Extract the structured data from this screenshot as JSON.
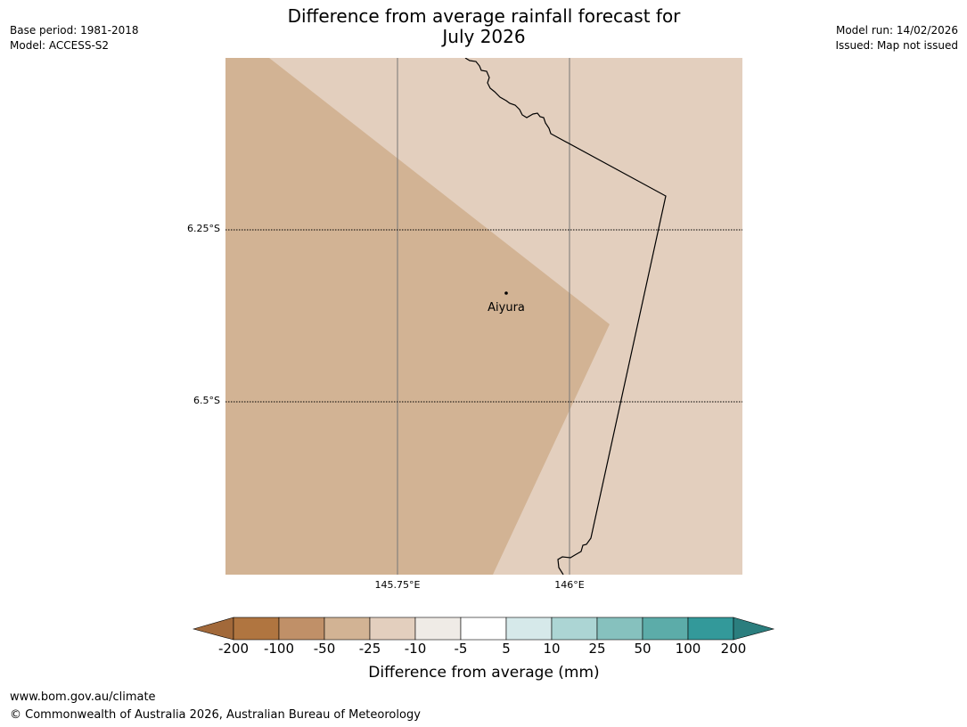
{
  "header": {
    "title_line1": "Difference from average rainfall forecast for",
    "title_line2": "July 2026",
    "base_period": "Base period: 1981-2018",
    "model": "Model: ACCESS-S2",
    "model_run": "Model run: 14/02/2026",
    "issued": "Issued: Map not issued"
  },
  "map": {
    "colors": {
      "band_minus50_to_minus25": "#d2b394",
      "band_minus25_to_minus10": "#e3cfbe"
    },
    "lat_labels": [
      "6.25°S",
      "6.5°S"
    ],
    "lon_labels": [
      "145.75°E",
      "146°E"
    ],
    "place": {
      "name": "Aiyura"
    }
  },
  "legend": {
    "title": "Difference from average (mm)",
    "ticks": [
      "-200",
      "-100",
      "-50",
      "-25",
      "-10",
      "-5",
      "5",
      "10",
      "25",
      "50",
      "100",
      "200"
    ],
    "colors": [
      "#a2693a",
      "#b07540",
      "#c09068",
      "#d2b394",
      "#e3cfbe",
      "#efebe6",
      "#ffffff",
      "#d6e9ea",
      "#acd5d4",
      "#86c1be",
      "#5caca9",
      "#33999a",
      "#2b7e7e"
    ]
  },
  "footer": {
    "url": "www.bom.gov.au/climate",
    "copyright": "© Commonwealth of Australia 2026, Australian Bureau of Meteorology"
  }
}
